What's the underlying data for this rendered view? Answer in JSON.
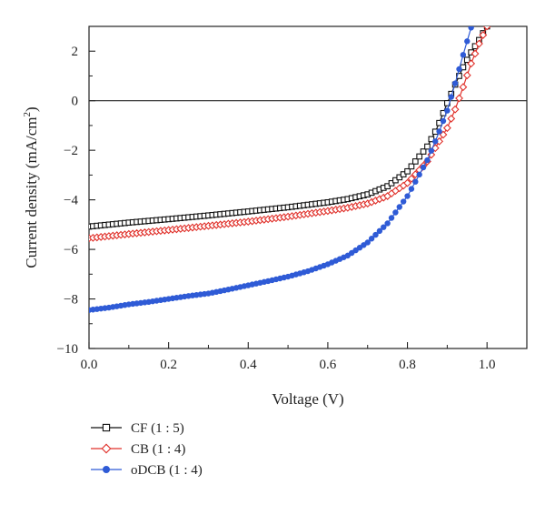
{
  "chart_data": {
    "type": "line",
    "xlabel": "Voltage (V)",
    "ylabel_main": "Current density (mA/cm",
    "ylabel_sup": "2",
    "ylabel_end": ")",
    "xlim": [
      0.0,
      1.1
    ],
    "ylim": [
      -10,
      3
    ],
    "x_ticks": [
      0.0,
      0.2,
      0.4,
      0.6,
      0.8,
      1.0
    ],
    "x_tick_labels": [
      "0.0",
      "0.2",
      "0.4",
      "0.6",
      "0.8",
      "1.0"
    ],
    "y_ticks": [
      -10,
      -8,
      -6,
      -4,
      -2,
      0,
      2
    ],
    "y_tick_labels": [
      "−10",
      "−8",
      "−6",
      "−4",
      "−2",
      "0",
      "2"
    ],
    "zero_line": true,
    "grid": false,
    "legend_position": "bottom-left, below plot",
    "series": [
      {
        "name": "CF (1 : 5)",
        "color": "#111111",
        "marker": "square-open",
        "points": [
          [
            0.0,
            -5.08
          ],
          [
            0.1,
            -4.92
          ],
          [
            0.2,
            -4.78
          ],
          [
            0.3,
            -4.63
          ],
          [
            0.4,
            -4.47
          ],
          [
            0.5,
            -4.3
          ],
          [
            0.6,
            -4.1
          ],
          [
            0.65,
            -3.97
          ],
          [
            0.7,
            -3.78
          ],
          [
            0.75,
            -3.45
          ],
          [
            0.8,
            -2.85
          ],
          [
            0.85,
            -1.85
          ],
          [
            0.875,
            -1.1
          ],
          [
            0.9,
            -0.1
          ],
          [
            0.92,
            0.65
          ],
          [
            0.94,
            1.35
          ],
          [
            0.96,
            1.95
          ],
          [
            0.98,
            2.45
          ],
          [
            1.0,
            3.0
          ]
        ]
      },
      {
        "name": "CB (1 : 4)",
        "color": "#e0302a",
        "marker": "diamond-open",
        "points": [
          [
            0.0,
            -5.55
          ],
          [
            0.1,
            -5.38
          ],
          [
            0.2,
            -5.22
          ],
          [
            0.3,
            -5.05
          ],
          [
            0.4,
            -4.88
          ],
          [
            0.5,
            -4.68
          ],
          [
            0.6,
            -4.45
          ],
          [
            0.65,
            -4.32
          ],
          [
            0.7,
            -4.15
          ],
          [
            0.75,
            -3.85
          ],
          [
            0.8,
            -3.32
          ],
          [
            0.85,
            -2.45
          ],
          [
            0.9,
            -1.1
          ],
          [
            0.92,
            -0.35
          ],
          [
            0.94,
            0.55
          ],
          [
            0.96,
            1.5
          ],
          [
            0.98,
            2.3
          ],
          [
            1.0,
            3.0
          ]
        ]
      },
      {
        "name": "oDCB (1 : 4)",
        "color": "#2f5bd6",
        "marker": "circle-filled",
        "points": [
          [
            0.0,
            -8.45
          ],
          [
            0.05,
            -8.35
          ],
          [
            0.1,
            -8.22
          ],
          [
            0.15,
            -8.12
          ],
          [
            0.2,
            -8.0
          ],
          [
            0.25,
            -7.88
          ],
          [
            0.3,
            -7.78
          ],
          [
            0.35,
            -7.62
          ],
          [
            0.4,
            -7.45
          ],
          [
            0.45,
            -7.28
          ],
          [
            0.5,
            -7.1
          ],
          [
            0.55,
            -6.88
          ],
          [
            0.6,
            -6.6
          ],
          [
            0.65,
            -6.25
          ],
          [
            0.7,
            -5.72
          ],
          [
            0.75,
            -4.95
          ],
          [
            0.8,
            -3.85
          ],
          [
            0.85,
            -2.4
          ],
          [
            0.875,
            -1.45
          ],
          [
            0.9,
            -0.4
          ],
          [
            0.92,
            0.7
          ],
          [
            0.94,
            1.85
          ],
          [
            0.96,
            2.95
          ]
        ]
      }
    ]
  }
}
